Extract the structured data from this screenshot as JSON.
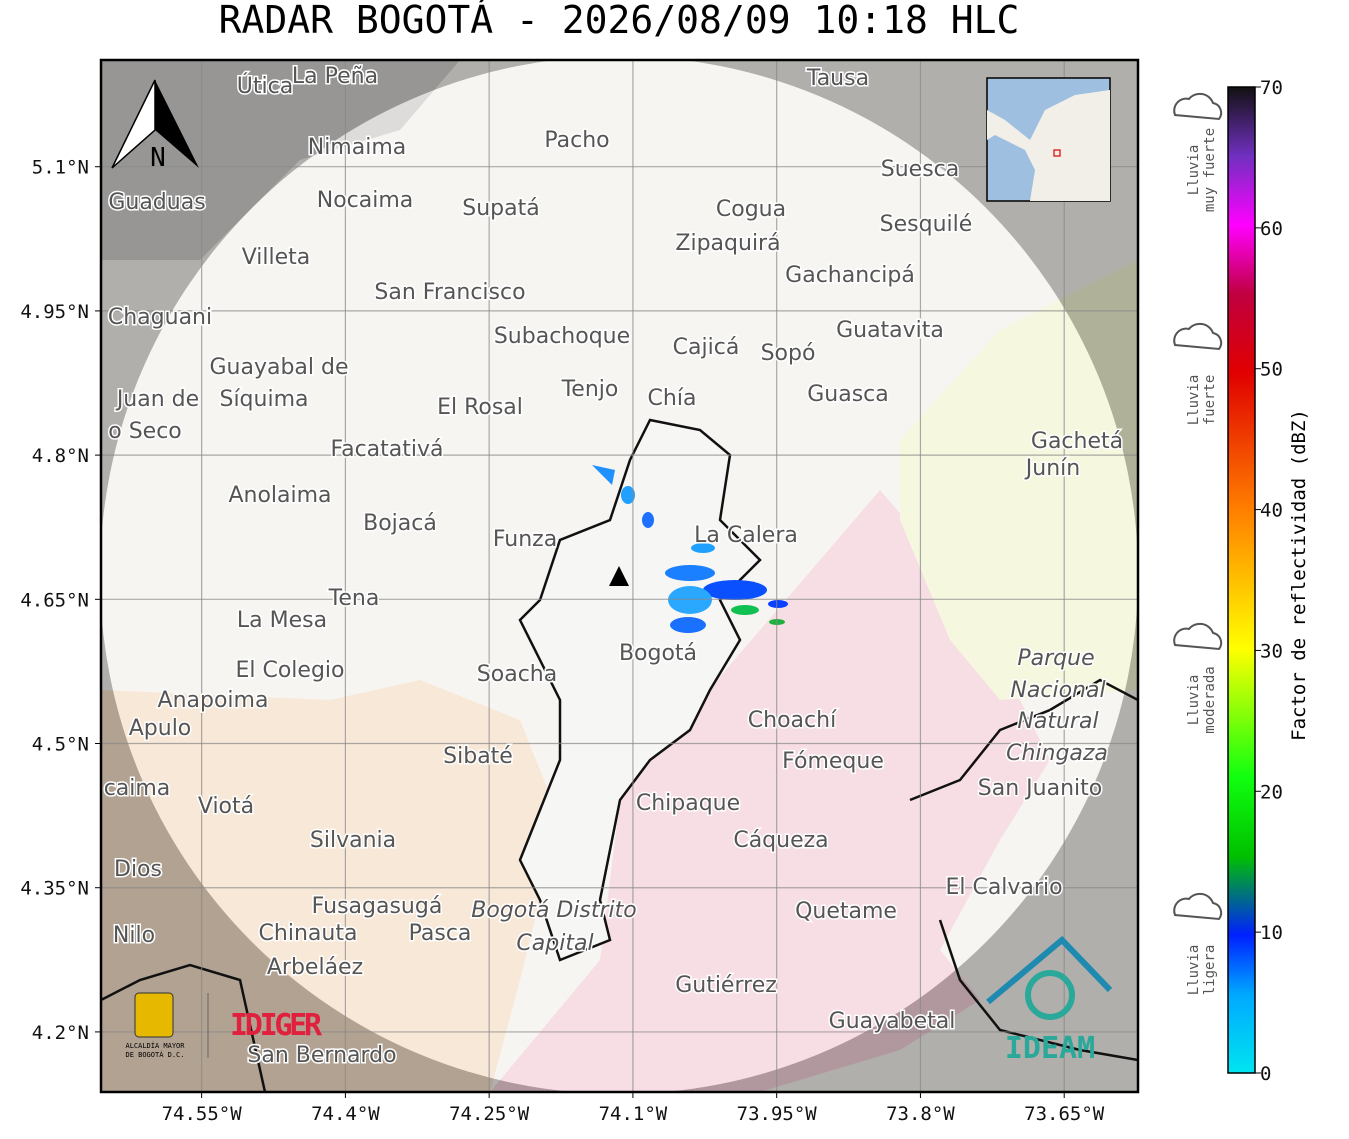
{
  "title": "RADAR BOGOTÁ - 2026/08/09 10:18 HLC",
  "map": {
    "xlim": [
      -74.655,
      -73.573
    ],
    "ylim": [
      4.1375,
      5.211
    ],
    "xticks": [
      {
        "value": -74.55,
        "label": "74.55°W"
      },
      {
        "value": -74.4,
        "label": "74.4°W"
      },
      {
        "value": -74.25,
        "label": "74.25°W"
      },
      {
        "value": -74.1,
        "label": "74.1°W"
      },
      {
        "value": -73.95,
        "label": "73.95°W"
      },
      {
        "value": -73.8,
        "label": "73.8°W"
      },
      {
        "value": -73.65,
        "label": "73.65°W"
      }
    ],
    "yticks": [
      {
        "value": 5.1,
        "label": "5.1°N"
      },
      {
        "value": 4.95,
        "label": "4.95°N"
      },
      {
        "value": 4.8,
        "label": "4.8°N"
      },
      {
        "value": 4.65,
        "label": "4.65°N"
      },
      {
        "value": 4.5,
        "label": "4.5°N"
      },
      {
        "value": 4.35,
        "label": "4.35°N"
      },
      {
        "value": 4.2,
        "label": "4.2°N"
      }
    ],
    "north": "N",
    "places": [
      "Útica",
      "La Peña",
      "Tausa",
      "Pacho",
      "Nimaima",
      "Suesca",
      "Guaduas",
      "Nocaima",
      "Supatá",
      "Cogua",
      "Sesquilé",
      "Zipaquirá",
      "Villeta",
      "Gachancipá",
      "San Francisco",
      "Chaguani",
      "Guatavita",
      "Subachoque",
      "Cajicá",
      "Sopó",
      "Guayabal de",
      "Síquima",
      "Juan de",
      "o Seco",
      "Tenjo",
      "Chía",
      "Guasca",
      "El Rosal",
      "Facatativá",
      "Gachetá",
      "Junín",
      "Anolaima",
      "Bojacá",
      "Funza",
      "La Calera",
      "Tena",
      "La Mesa",
      "Bogotá",
      "El Colegio",
      "Soacha",
      "Parque",
      "Nacional",
      "Natural",
      "Chingaza",
      "Anapoima",
      "Apulo",
      "Choachí",
      "Fómeque",
      "Sibaté",
      "San Juanito",
      "caima",
      "Viotá",
      "Chipaque",
      "Silvania",
      "Cáqueza",
      "Dios",
      "El Calvario",
      "Fusagasugá",
      "Bogotá Distrito",
      "Capital",
      "Quetame",
      "Nilo",
      "Chinauta",
      "Pasca",
      "Arbeláez",
      "Gutiérrez",
      "Guayabetal",
      "San Bernardo"
    ],
    "logos": {
      "alcaldia": [
        "ALCALDÍA MAYOR",
        "DE BOGOTÁ D.C."
      ],
      "idiger": "IDIGER",
      "ideam": "IDEAM"
    }
  },
  "colorbar": {
    "label": "Factor de reflectividad (dBZ)",
    "lim": [
      0,
      70
    ],
    "ticks": [
      0,
      10,
      20,
      30,
      40,
      50,
      60,
      70
    ]
  },
  "rain_levels": [
    [
      "Lluvia",
      "muy fuerte"
    ],
    [
      "Lluvia",
      "fuerte"
    ],
    [
      "Lluvia",
      "moderada"
    ],
    [
      "Lluvia",
      "ligera"
    ]
  ]
}
